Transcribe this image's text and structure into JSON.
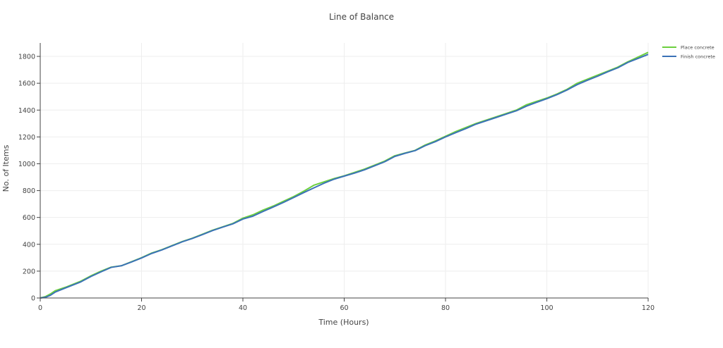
{
  "chart_data": {
    "type": "line",
    "title": "Line of Balance",
    "xlabel": "Time (Hours)",
    "ylabel": "No. of Items",
    "xlim": [
      0,
      120
    ],
    "ylim": [
      0,
      1900
    ],
    "xticks": [
      0,
      20,
      40,
      60,
      80,
      100,
      120
    ],
    "yticks": [
      0,
      200,
      400,
      600,
      800,
      1000,
      1200,
      1400,
      1600,
      1800
    ],
    "grid": true,
    "legend_position": "top-right",
    "series": [
      {
        "name": "Place concrete",
        "color": "#6ccf3e",
        "x": [
          0,
          1,
          2,
          3,
          5,
          8,
          10,
          12,
          14,
          16,
          18,
          20,
          22,
          24,
          26,
          28,
          30,
          32,
          34,
          36,
          38,
          40,
          42,
          44,
          46,
          48,
          50,
          52,
          54,
          56,
          58,
          60,
          62,
          64,
          66,
          68,
          70,
          72,
          74,
          76,
          78,
          80,
          82,
          84,
          86,
          88,
          90,
          92,
          94,
          96,
          98,
          100,
          102,
          104,
          106,
          108,
          110,
          112,
          114,
          116,
          118,
          120
        ],
        "y": [
          0,
          10,
          30,
          55,
          80,
          125,
          165,
          200,
          230,
          240,
          270,
          300,
          335,
          360,
          390,
          420,
          445,
          475,
          505,
          530,
          555,
          595,
          620,
          655,
          685,
          720,
          755,
          795,
          840,
          865,
          890,
          910,
          935,
          960,
          990,
          1020,
          1060,
          1080,
          1100,
          1140,
          1170,
          1205,
          1240,
          1270,
          1300,
          1325,
          1350,
          1375,
          1400,
          1440,
          1465,
          1490,
          1520,
          1555,
          1600,
          1630,
          1660,
          1690,
          1720,
          1760,
          1795,
          1830
        ]
      },
      {
        "name": "Finish concrete",
        "color": "#3b72b7",
        "x": [
          0,
          1,
          2,
          3,
          5,
          8,
          10,
          12,
          14,
          16,
          18,
          20,
          22,
          24,
          26,
          28,
          30,
          32,
          34,
          36,
          38,
          40,
          42,
          44,
          46,
          48,
          50,
          52,
          54,
          56,
          58,
          60,
          62,
          64,
          66,
          68,
          70,
          72,
          74,
          76,
          78,
          80,
          82,
          84,
          86,
          88,
          90,
          92,
          94,
          96,
          98,
          100,
          102,
          104,
          106,
          108,
          110,
          112,
          114,
          116,
          118,
          120
        ],
        "y": [
          0,
          5,
          20,
          45,
          75,
          120,
          160,
          195,
          228,
          240,
          268,
          298,
          332,
          358,
          388,
          418,
          443,
          472,
          502,
          528,
          552,
          588,
          610,
          645,
          678,
          712,
          748,
          785,
          820,
          855,
          885,
          908,
          930,
          955,
          985,
          1015,
          1055,
          1078,
          1098,
          1135,
          1165,
          1200,
          1232,
          1262,
          1295,
          1320,
          1345,
          1370,
          1395,
          1430,
          1458,
          1485,
          1515,
          1550,
          1590,
          1622,
          1652,
          1685,
          1715,
          1755,
          1785,
          1815
        ]
      }
    ]
  }
}
